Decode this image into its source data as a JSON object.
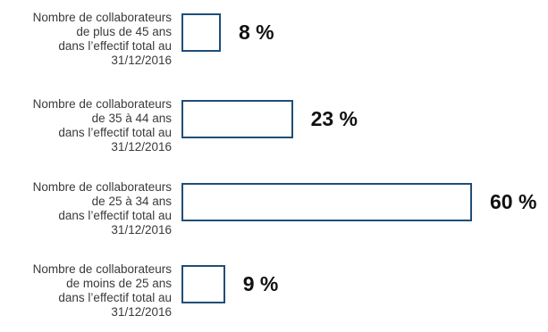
{
  "chart_data": {
    "type": "bar",
    "orientation": "horizontal",
    "categories": [
      "Nombre de collaborateurs\nde plus de 45 ans\ndans l’effectif total au\n31/12/2016",
      "Nombre de collaborateurs\nde 35 à 44 ans\ndans l’effectif total au\n31/12/2016",
      "Nombre de collaborateurs\nde 25 à 34 ans\ndans l’effectif total au\n31/12/2016",
      "Nombre de collaborateurs\nde moins de 25 ans\ndans l’effectif total au\n31/12/2016"
    ],
    "values": [
      8,
      23,
      60,
      9
    ],
    "value_labels": [
      "8 %",
      "23 %",
      "60 %",
      "9 %"
    ],
    "unit": "%",
    "xlim": [
      0,
      60
    ],
    "grid": false,
    "legend": "none",
    "colors": {
      "bar_outline": "#1f4e79",
      "bar_fill": "#ffffff",
      "label_text": "#3a3a3a",
      "value_text": "#111111"
    }
  }
}
